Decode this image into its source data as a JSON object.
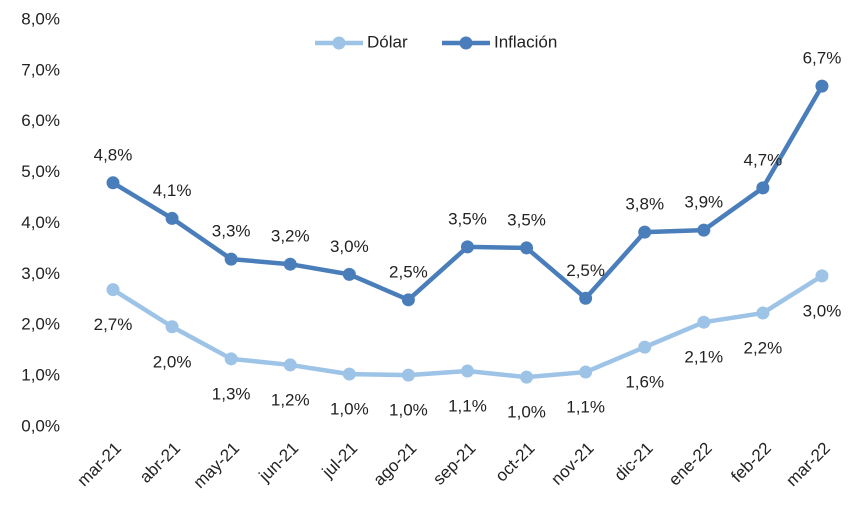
{
  "chart_data": {
    "type": "line",
    "categories": [
      "mar-21",
      "abr-21",
      "may-21",
      "jun-21",
      "jul-21",
      "ago-21",
      "sep-21",
      "oct-21",
      "nov-21",
      "dic-21",
      "ene-22",
      "feb-22",
      "mar-22"
    ],
    "series": [
      {
        "name": "Dólar",
        "color": "#9dc3e6",
        "values": [
          2.7,
          1.97,
          1.34,
          1.22,
          1.04,
          1.02,
          1.1,
          0.98,
          1.08,
          1.57,
          2.06,
          2.24,
          2.97
        ],
        "value_labels": [
          "2,7%",
          "2,0%",
          "1,3%",
          "1,2%",
          "1,0%",
          "1,0%",
          "1,1%",
          "1,0%",
          "1,1%",
          "1,6%",
          "2,1%",
          "2,2%",
          "3,0%"
        ]
      },
      {
        "name": "Inflación",
        "color": "#4a7ebb",
        "values": [
          4.8,
          4.1,
          3.3,
          3.2,
          3.0,
          2.5,
          3.54,
          3.52,
          2.53,
          3.83,
          3.87,
          4.7,
          6.7
        ],
        "value_labels": [
          "4,8%",
          "4,1%",
          "3,3%",
          "3,2%",
          "3,0%",
          "2,5%",
          "3,5%",
          "3,5%",
          "2,5%",
          "3,8%",
          "3,9%",
          "4,7%",
          "6,7%"
        ]
      }
    ],
    "ylim": [
      0,
      8
    ],
    "yticks": [
      {
        "value": 0,
        "label": "0,0%"
      },
      {
        "value": 1,
        "label": "1,0%"
      },
      {
        "value": 2,
        "label": "2,0%"
      },
      {
        "value": 3,
        "label": "3,0%"
      },
      {
        "value": 4,
        "label": "4,0%"
      },
      {
        "value": 5,
        "label": "5,0%"
      },
      {
        "value": 6,
        "label": "6,0%"
      },
      {
        "value": 7,
        "label": "7,0%"
      },
      {
        "value": 8,
        "label": "8,0%"
      }
    ],
    "legend": "top"
  }
}
